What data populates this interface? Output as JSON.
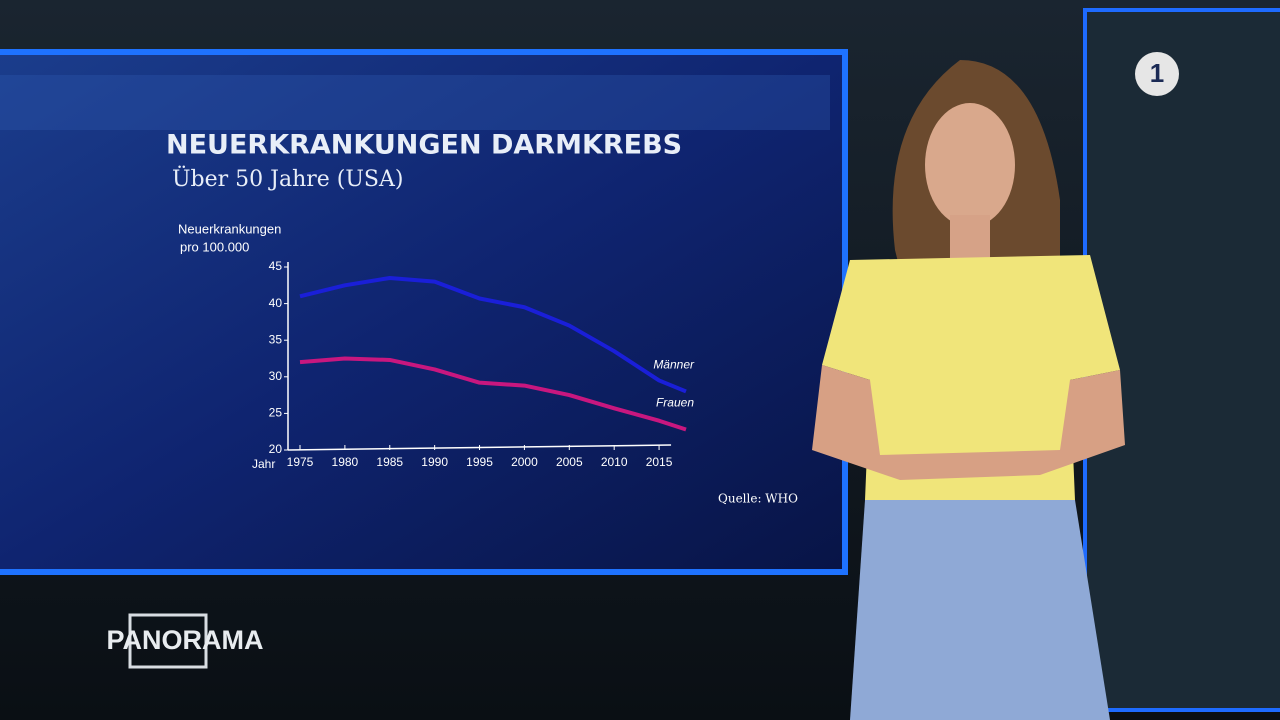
{
  "chart_data": {
    "type": "line",
    "title": "NEUERKRANKUNGEN DARMKREBS",
    "subtitle": "Über 50 Jahre (USA)",
    "ylabel": [
      "Neuerkrankungen",
      "pro 100.000"
    ],
    "xlabel": "Jahr",
    "x": [
      1975,
      1980,
      1985,
      1990,
      1995,
      2000,
      2005,
      2010,
      2015,
      2018
    ],
    "series": [
      {
        "name": "Männer",
        "color": "#1a1fd8",
        "values": [
          41,
          42.5,
          43.5,
          43,
          40.7,
          39.5,
          37,
          33.5,
          29.5,
          28
        ]
      },
      {
        "name": "Frauen",
        "color": "#c8177f",
        "values": [
          32,
          32.5,
          32.3,
          31,
          29.2,
          28.8,
          27.5,
          25.7,
          24,
          22.8
        ]
      }
    ],
    "xlim": [
      1975,
      2018
    ],
    "xticks": [
      1975,
      1980,
      1985,
      1990,
      1995,
      2000,
      2005,
      2010,
      2015
    ],
    "ylim": [
      20,
      45
    ],
    "yticks": [
      20,
      25,
      30,
      35,
      40,
      45
    ],
    "source": "Quelle: WHO"
  },
  "broadcast": {
    "logo": "PANORAMA",
    "channel": "1"
  }
}
